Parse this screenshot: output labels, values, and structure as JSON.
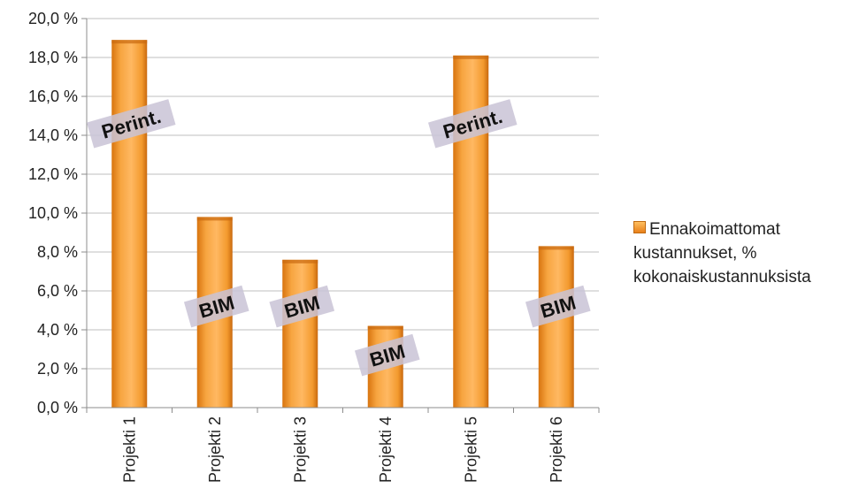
{
  "chart_data": {
    "type": "bar",
    "categories": [
      "Projekti 1",
      "Projekti 2",
      "Projekti 3",
      "Projekti 4",
      "Projekti 5",
      "Projekti 6"
    ],
    "series": [
      {
        "name": "Ennakoimattomat kustannukset, % kokonaiskustannuksista",
        "values": [
          18.9,
          9.8,
          7.6,
          4.2,
          18.1,
          8.3
        ]
      }
    ],
    "annotations": [
      "Perint.",
      "BIM",
      "BIM",
      "BIM",
      "Perint.",
      "BIM"
    ],
    "ylim": [
      0,
      20
    ],
    "yticks": [
      "0,0 %",
      "2,0 %",
      "4,0 %",
      "6,0 %",
      "8,0 %",
      "10,0 %",
      "12,0 %",
      "14,0 %",
      "16,0 %",
      "18,0 %",
      "20,0 %"
    ],
    "grid": true,
    "legend_position": "right",
    "colors": {
      "bar": "#f59a2c",
      "bar_dark": "#c9690f",
      "tag": "#c9c3d6",
      "grid": "#bfbfbf"
    }
  },
  "legend": {
    "lines": [
      "Ennakoimattomat",
      "kustannukset, %",
      "kokonaiskustannuksista"
    ]
  }
}
